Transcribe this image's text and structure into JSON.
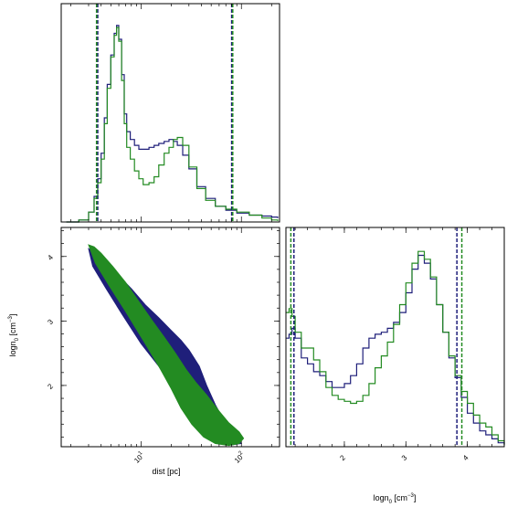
{
  "chart_data": [
    {
      "type": "histogram",
      "panel": "top-left",
      "x_variable": "dist [pc]",
      "xscale": "log",
      "xlim": [
        1.6,
        240
      ],
      "series": [
        {
          "color": "#1f1f7a",
          "values": [
            [
              1.8,
              0
            ],
            [
              2.4,
              0.01
            ],
            [
              3.0,
              0.05
            ],
            [
              3.4,
              0.13
            ],
            [
              3.7,
              0.22
            ],
            [
              4.0,
              0.35
            ],
            [
              4.3,
              0.53
            ],
            [
              4.6,
              0.7
            ],
            [
              5.0,
              0.85
            ],
            [
              5.4,
              0.96
            ],
            [
              5.7,
              1.0
            ],
            [
              6.0,
              0.93
            ],
            [
              6.4,
              0.75
            ],
            [
              6.8,
              0.55
            ],
            [
              7.2,
              0.46
            ],
            [
              7.8,
              0.42
            ],
            [
              8.6,
              0.39
            ],
            [
              9.5,
              0.37
            ],
            [
              10.5,
              0.37
            ],
            [
              12,
              0.38
            ],
            [
              13.5,
              0.39
            ],
            [
              15,
              0.4
            ],
            [
              17,
              0.41
            ],
            [
              19,
              0.42
            ],
            [
              21,
              0.41
            ],
            [
              23,
              0.39
            ],
            [
              26,
              0.34
            ],
            [
              30,
              0.27
            ],
            [
              36,
              0.18
            ],
            [
              44,
              0.12
            ],
            [
              55,
              0.08
            ],
            [
              70,
              0.06
            ],
            [
              90,
              0.045
            ],
            [
              120,
              0.035
            ],
            [
              160,
              0.03
            ],
            [
              200,
              0.025
            ],
            [
              230,
              0.02
            ]
          ]
        },
        {
          "color": "#238b22",
          "values": [
            [
              1.8,
              0
            ],
            [
              2.4,
              0.01
            ],
            [
              3.0,
              0.05
            ],
            [
              3.4,
              0.12
            ],
            [
              3.7,
              0.2
            ],
            [
              4.0,
              0.32
            ],
            [
              4.3,
              0.5
            ],
            [
              4.6,
              0.68
            ],
            [
              5.0,
              0.84
            ],
            [
              5.4,
              0.95
            ],
            [
              5.7,
              0.99
            ],
            [
              6.0,
              0.92
            ],
            [
              6.4,
              0.72
            ],
            [
              6.8,
              0.5
            ],
            [
              7.2,
              0.38
            ],
            [
              7.8,
              0.32
            ],
            [
              8.6,
              0.26
            ],
            [
              9.5,
              0.22
            ],
            [
              10.5,
              0.19
            ],
            [
              12,
              0.2
            ],
            [
              13.5,
              0.23
            ],
            [
              15,
              0.29
            ],
            [
              17,
              0.35
            ],
            [
              19,
              0.38
            ],
            [
              21,
              0.42
            ],
            [
              23,
              0.43
            ],
            [
              26,
              0.39
            ],
            [
              30,
              0.28
            ],
            [
              36,
              0.17
            ],
            [
              44,
              0.11
            ],
            [
              55,
              0.08
            ],
            [
              70,
              0.065
            ],
            [
              90,
              0.05
            ],
            [
              120,
              0.035
            ],
            [
              160,
              0.02
            ],
            [
              200,
              0.01
            ],
            [
              230,
              0.005
            ]
          ]
        }
      ],
      "vlines": [
        {
          "color": "#1f1f7a",
          "x": 3.7
        },
        {
          "color": "#238b22",
          "x": 3.6
        },
        {
          "color": "#1f1f7a",
          "x": 80
        },
        {
          "color": "#238b22",
          "x": 82
        }
      ]
    },
    {
      "type": "contour",
      "panel": "bottom-left",
      "xlabel": "dist [pc]",
      "ylabel": "logn0 [cm-3]",
      "xscale": "log",
      "xlim": [
        1.6,
        240
      ],
      "ylim": [
        1.05,
        4.45
      ],
      "xticks": [
        {
          "value": 10,
          "label": "10",
          "sup": "1"
        },
        {
          "value": 100,
          "label": "10",
          "sup": "2"
        }
      ],
      "yticks": [
        {
          "value": 2,
          "label": "2"
        },
        {
          "value": 3,
          "label": "3"
        },
        {
          "value": 4,
          "label": "4"
        }
      ],
      "series": [
        {
          "color": "#1f1f7a",
          "outline": [
            [
              3.0,
              4.12
            ],
            [
              3.6,
              4.05
            ],
            [
              4.5,
              3.9
            ],
            [
              6,
              3.7
            ],
            [
              8,
              3.5
            ],
            [
              11,
              3.25
            ],
            [
              15,
              3.05
            ],
            [
              20,
              2.85
            ],
            [
              25,
              2.7
            ],
            [
              30,
              2.55
            ],
            [
              38,
              2.3
            ],
            [
              45,
              2.0
            ],
            [
              55,
              1.7
            ],
            [
              70,
              1.4
            ],
            [
              90,
              1.2
            ],
            [
              100,
              1.1
            ],
            [
              80,
              1.08
            ],
            [
              60,
              1.15
            ],
            [
              45,
              1.3
            ],
            [
              35,
              1.55
            ],
            [
              26,
              1.75
            ],
            [
              20,
              2.0
            ],
            [
              15,
              2.3
            ],
            [
              10,
              2.65
            ],
            [
              6.5,
              3.1
            ],
            [
              4.5,
              3.5
            ],
            [
              3.3,
              3.85
            ],
            [
              3.0,
              4.12
            ]
          ]
        },
        {
          "color": "#238b22",
          "outline": [
            [
              3.0,
              4.18
            ],
            [
              3.4,
              4.15
            ],
            [
              4.0,
              4.05
            ],
            [
              5.2,
              3.85
            ],
            [
              7,
              3.6
            ],
            [
              9.5,
              3.3
            ],
            [
              13,
              3.0
            ],
            [
              17,
              2.75
            ],
            [
              22,
              2.5
            ],
            [
              28,
              2.25
            ],
            [
              35,
              2.05
            ],
            [
              45,
              1.85
            ],
            [
              60,
              1.6
            ],
            [
              75,
              1.42
            ],
            [
              95,
              1.28
            ],
            [
              105,
              1.18
            ],
            [
              95,
              1.1
            ],
            [
              75,
              1.07
            ],
            [
              55,
              1.1
            ],
            [
              42,
              1.2
            ],
            [
              32,
              1.4
            ],
            [
              25,
              1.65
            ],
            [
              20,
              1.95
            ],
            [
              15,
              2.3
            ],
            [
              11,
              2.65
            ],
            [
              7,
              3.15
            ],
            [
              4.8,
              3.55
            ],
            [
              3.5,
              3.9
            ],
            [
              3.0,
              4.18
            ]
          ]
        }
      ]
    },
    {
      "type": "histogram",
      "panel": "bottom-right",
      "xlabel": "logn0 [cm-3]",
      "xlim": [
        1.05,
        4.6
      ],
      "xticks": [
        {
          "value": 2,
          "label": "2"
        },
        {
          "value": 3,
          "label": "3"
        },
        {
          "value": 4,
          "label": "4"
        }
      ],
      "series": [
        {
          "color": "#1f1f7a",
          "values": [
            [
              1.05,
              0.55
            ],
            [
              1.1,
              0.57
            ],
            [
              1.15,
              0.6
            ],
            [
              1.2,
              0.55
            ],
            [
              1.3,
              0.45
            ],
            [
              1.4,
              0.42
            ],
            [
              1.5,
              0.38
            ],
            [
              1.6,
              0.36
            ],
            [
              1.7,
              0.33
            ],
            [
              1.8,
              0.3
            ],
            [
              1.9,
              0.3
            ],
            [
              2.0,
              0.32
            ],
            [
              2.1,
              0.36
            ],
            [
              2.2,
              0.42
            ],
            [
              2.3,
              0.5
            ],
            [
              2.4,
              0.55
            ],
            [
              2.5,
              0.57
            ],
            [
              2.6,
              0.58
            ],
            [
              2.7,
              0.6
            ],
            [
              2.8,
              0.63
            ],
            [
              2.9,
              0.68
            ],
            [
              3.0,
              0.78
            ],
            [
              3.1,
              0.9
            ],
            [
              3.2,
              0.97
            ],
            [
              3.3,
              0.93
            ],
            [
              3.4,
              0.85
            ],
            [
              3.5,
              0.72
            ],
            [
              3.6,
              0.58
            ],
            [
              3.7,
              0.45
            ],
            [
              3.8,
              0.35
            ],
            [
              3.9,
              0.25
            ],
            [
              4.0,
              0.17
            ],
            [
              4.1,
              0.12
            ],
            [
              4.2,
              0.08
            ],
            [
              4.3,
              0.06
            ],
            [
              4.4,
              0.04
            ],
            [
              4.5,
              0.02
            ],
            [
              4.6,
              0.01
            ]
          ]
        },
        {
          "color": "#238b22",
          "values": [
            [
              1.05,
              0.68
            ],
            [
              1.1,
              0.7
            ],
            [
              1.15,
              0.66
            ],
            [
              1.2,
              0.58
            ],
            [
              1.3,
              0.5
            ],
            [
              1.4,
              0.5
            ],
            [
              1.5,
              0.44
            ],
            [
              1.6,
              0.38
            ],
            [
              1.7,
              0.3
            ],
            [
              1.8,
              0.26
            ],
            [
              1.9,
              0.24
            ],
            [
              2.0,
              0.23
            ],
            [
              2.1,
              0.22
            ],
            [
              2.2,
              0.23
            ],
            [
              2.3,
              0.26
            ],
            [
              2.4,
              0.32
            ],
            [
              2.5,
              0.4
            ],
            [
              2.6,
              0.46
            ],
            [
              2.7,
              0.53
            ],
            [
              2.8,
              0.62
            ],
            [
              2.9,
              0.72
            ],
            [
              3.0,
              0.83
            ],
            [
              3.1,
              0.93
            ],
            [
              3.2,
              0.99
            ],
            [
              3.3,
              0.95
            ],
            [
              3.4,
              0.86
            ],
            [
              3.5,
              0.72
            ],
            [
              3.6,
              0.58
            ],
            [
              3.7,
              0.46
            ],
            [
              3.8,
              0.36
            ],
            [
              3.9,
              0.28
            ],
            [
              4.0,
              0.22
            ],
            [
              4.1,
              0.16
            ],
            [
              4.2,
              0.12
            ],
            [
              4.3,
              0.1
            ],
            [
              4.4,
              0.06
            ],
            [
              4.5,
              0.03
            ],
            [
              4.6,
              0.01
            ]
          ]
        }
      ],
      "vlines": [
        {
          "color": "#238b22",
          "x": 1.13
        },
        {
          "color": "#1f1f7a",
          "x": 1.18
        },
        {
          "color": "#1f1f7a",
          "x": 3.83
        },
        {
          "color": "#238b22",
          "x": 3.91
        }
      ]
    }
  ],
  "labels": {
    "dist_axis": "dist [pc]",
    "logn_axis_main": "logn",
    "logn_axis_sub": "0",
    "logn_axis_unit": " [cm",
    "logn_axis_exp": "−3",
    "logn_axis_close": "]"
  }
}
